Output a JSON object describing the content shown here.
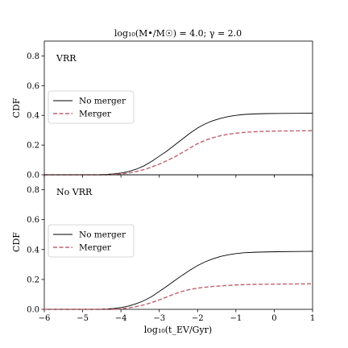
{
  "chart_data": {
    "type": "line",
    "title": "log₁₀(M•/M☉) = 4.0; γ = 2.0",
    "xlabel": "log₁₀(t_EV/Gyr)",
    "xlim": [
      -6,
      1
    ],
    "xticks": [
      -6,
      -5,
      -4,
      -3,
      -2,
      -1,
      0,
      1
    ],
    "ylim": [
      0,
      0.9
    ],
    "yticks": [
      0.0,
      0.2,
      0.4,
      0.6,
      0.8
    ],
    "ytick_labels": [
      "0.0",
      "0.2",
      "0.4",
      "0.6",
      "0.8"
    ],
    "legend_placement": "center-left",
    "grid": false,
    "colors": {
      "no_merger": "#000000",
      "merger": "#c0616f"
    },
    "panels": [
      {
        "label": "VRR",
        "ylabel": "CDF",
        "series": [
          {
            "name": "No merger",
            "style": "solid",
            "x": [
              -6,
              -4.6,
              -4.4,
              -4.2,
              -4.0,
              -3.8,
              -3.6,
              -3.4,
              -3.2,
              -3.0,
              -2.8,
              -2.6,
              -2.4,
              -2.2,
              -2.0,
              -1.8,
              -1.6,
              -1.4,
              -1.2,
              -1.0,
              -0.8,
              -0.5,
              -0.2,
              0.2,
              0.6,
              1.0
            ],
            "y": [
              0,
              0,
              0.002,
              0.006,
              0.012,
              0.022,
              0.038,
              0.06,
              0.09,
              0.125,
              0.16,
              0.2,
              0.24,
              0.28,
              0.315,
              0.343,
              0.364,
              0.38,
              0.392,
              0.4,
              0.406,
              0.41,
              0.412,
              0.413,
              0.414,
              0.415
            ]
          },
          {
            "name": "Merger",
            "style": "dashed",
            "x": [
              -6,
              -4.4,
              -4.2,
              -4.0,
              -3.8,
              -3.6,
              -3.4,
              -3.2,
              -3.0,
              -2.8,
              -2.6,
              -2.4,
              -2.2,
              -2.0,
              -1.8,
              -1.6,
              -1.4,
              -1.2,
              -1.0,
              -0.8,
              -0.5,
              -0.2,
              0.2,
              0.6,
              1.0
            ],
            "y": [
              0,
              0,
              0.002,
              0.006,
              0.012,
              0.022,
              0.035,
              0.052,
              0.072,
              0.095,
              0.12,
              0.15,
              0.18,
              0.21,
              0.232,
              0.25,
              0.263,
              0.273,
              0.28,
              0.285,
              0.29,
              0.293,
              0.295,
              0.296,
              0.297
            ]
          }
        ]
      },
      {
        "label": "No VRR",
        "ylabel": "CDF",
        "series": [
          {
            "name": "No merger",
            "style": "solid",
            "x": [
              -6,
              -4.6,
              -4.4,
              -4.2,
              -4.0,
              -3.8,
              -3.6,
              -3.4,
              -3.2,
              -3.0,
              -2.8,
              -2.6,
              -2.4,
              -2.2,
              -2.0,
              -1.8,
              -1.6,
              -1.4,
              -1.2,
              -1.0,
              -0.8,
              -0.5,
              -0.2,
              0.2,
              0.6,
              1.0
            ],
            "y": [
              0,
              0,
              0.002,
              0.006,
              0.012,
              0.022,
              0.038,
              0.058,
              0.085,
              0.12,
              0.155,
              0.192,
              0.228,
              0.262,
              0.293,
              0.318,
              0.338,
              0.354,
              0.365,
              0.373,
              0.378,
              0.382,
              0.384,
              0.386,
              0.387,
              0.388
            ]
          },
          {
            "name": "Merger",
            "style": "dashed",
            "x": [
              -6,
              -4.2,
              -4.0,
              -3.8,
              -3.6,
              -3.4,
              -3.2,
              -3.0,
              -2.8,
              -2.6,
              -2.4,
              -2.2,
              -2.0,
              -1.8,
              -1.6,
              -1.4,
              -1.2,
              -1.0,
              -0.8,
              -0.5,
              -0.2,
              0.2,
              0.6,
              1.0
            ],
            "y": [
              0,
              0,
              0.004,
              0.01,
              0.018,
              0.03,
              0.045,
              0.063,
              0.083,
              0.103,
              0.12,
              0.133,
              0.142,
              0.148,
              0.153,
              0.157,
              0.16,
              0.163,
              0.165,
              0.167,
              0.168,
              0.169,
              0.17,
              0.171
            ]
          }
        ]
      }
    ]
  }
}
